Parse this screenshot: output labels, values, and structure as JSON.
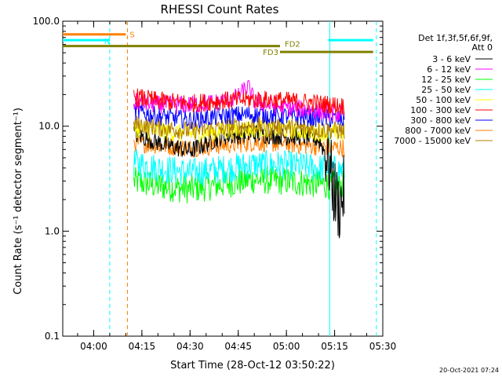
{
  "chart_data": {
    "type": "line",
    "title": "RHESSI Count Rates",
    "xlabel": "Start Time (28-Oct-12 03:50:22)",
    "ylabel": "Count Rate (s⁻¹ detector segment⁻¹)",
    "y_scale": "log",
    "ylim": [
      0.1,
      100.0
    ],
    "xlim": [
      "03:50:22",
      "05:30:00"
    ],
    "x_ticks": [
      "04:00",
      "04:15",
      "04:30",
      "04:45",
      "05:00",
      "05:15",
      "05:30"
    ],
    "y_ticks": [
      "0.1",
      "1.0",
      "10.0",
      "100.0"
    ],
    "grid": false,
    "legend_position": "right",
    "legend_header": [
      "Det 1f,3f,5f,6f,9f,",
      "Att 0"
    ],
    "timestamp": "20-Oct-2021 07:24",
    "data_start": "04:12:30",
    "data_end": "05:18:00",
    "series": [
      {
        "name": "3 - 6 keV",
        "color": "#000000",
        "x": [
          "04:12:30",
          "04:20:00",
          "04:30:00",
          "04:40:00",
          "04:50:00",
          "05:00:00",
          "05:05:00",
          "05:10:00",
          "05:13:00",
          "05:15:00",
          "05:16:30",
          "05:18:00"
        ],
        "values": [
          8.5,
          7.0,
          5.8,
          8.0,
          8.5,
          8.0,
          8.0,
          7.5,
          5.0,
          2.2,
          1.7,
          2.5
        ]
      },
      {
        "name": "6 - 12 keV",
        "color": "#ff00ff",
        "x": [
          "04:12:30",
          "04:20:00",
          "04:30:00",
          "04:40:00",
          "04:45:00",
          "04:48:00",
          "04:50:00",
          "04:55:00",
          "05:00:00",
          "05:10:00",
          "05:18:00"
        ],
        "values": [
          17,
          16,
          16,
          17,
          19,
          24,
          17,
          16,
          15,
          14,
          13
        ]
      },
      {
        "name": "12 - 25 keV",
        "color": "#00ff00",
        "x": [
          "04:12:30",
          "04:20:00",
          "04:30:00",
          "04:40:00",
          "04:50:00",
          "05:00:00",
          "05:10:00",
          "05:18:00"
        ],
        "values": [
          3.0,
          2.7,
          2.5,
          2.8,
          3.1,
          3.0,
          2.8,
          2.7
        ]
      },
      {
        "name": "25 - 50 keV",
        "color": "#00ffff",
        "x": [
          "04:12:30",
          "04:20:00",
          "04:30:00",
          "04:40:00",
          "04:50:00",
          "05:00:00",
          "05:10:00",
          "05:18:00"
        ],
        "values": [
          4.5,
          4.0,
          3.6,
          3.9,
          4.3,
          4.3,
          4.0,
          3.8
        ]
      },
      {
        "name": "50 - 100 keV",
        "color": "#ffff00",
        "x": [
          "04:12:30",
          "04:20:00",
          "04:30:00",
          "04:40:00",
          "04:50:00",
          "05:00:00",
          "05:10:00",
          "05:18:00"
        ],
        "values": [
          9.5,
          9.0,
          8.5,
          9.0,
          9.5,
          9.3,
          8.8,
          8.5
        ]
      },
      {
        "name": "100 - 300 keV",
        "color": "#ff0000",
        "x": [
          "04:12:30",
          "04:20:00",
          "04:30:00",
          "04:40:00",
          "04:50:00",
          "05:00:00",
          "05:10:00",
          "05:18:00"
        ],
        "values": [
          19,
          17.5,
          16.5,
          17.5,
          18,
          17.5,
          16.5,
          15.5
        ]
      },
      {
        "name": "300 - 800 keV",
        "color": "#0000ff",
        "x": [
          "04:12:30",
          "04:20:00",
          "04:30:00",
          "04:40:00",
          "04:50:00",
          "05:00:00",
          "05:10:00",
          "05:18:00"
        ],
        "values": [
          14,
          12.5,
          11.5,
          12.5,
          13,
          12.5,
          12,
          11.5
        ]
      },
      {
        "name": "800 - 7000 keV",
        "color": "#ff8000",
        "x": [
          "04:12:30",
          "04:20:00",
          "04:30:00",
          "04:40:00",
          "04:50:00",
          "05:00:00",
          "05:10:00",
          "05:18:00"
        ],
        "values": [
          7.0,
          6.6,
          6.2,
          6.6,
          7.0,
          6.8,
          6.4,
          6.2
        ]
      },
      {
        "name": "7000 - 15000 keV",
        "color": "#b08000",
        "x": [
          "04:12:30",
          "04:20:00",
          "04:30:00",
          "04:40:00",
          "04:50:00",
          "05:00:00",
          "05:10:00",
          "05:18:00"
        ],
        "values": [
          10.5,
          9.8,
          9.0,
          9.6,
          10.2,
          9.8,
          9.3,
          9.0
        ]
      }
    ],
    "flag_bars": [
      {
        "label": "S",
        "color": "#ff8000",
        "x_start": "03:50:22",
        "x_end": "04:10:00",
        "y": 75
      },
      {
        "label": "N",
        "color": "#00ffff",
        "x_start": "03:50:22",
        "x_end": "04:05:00",
        "y": 66
      },
      {
        "label": "N",
        "color": "#00ffff",
        "x_start": "05:13:00",
        "x_end": "05:27:00",
        "y": 66
      },
      {
        "label": "FD2",
        "color": "#808000",
        "x_start": "03:50:22",
        "x_end": "04:58:00",
        "y": 58
      },
      {
        "label": "FD3",
        "color": "#808000",
        "x_start": "04:58:00",
        "x_end": "05:27:00",
        "y": 51
      }
    ],
    "vertical_markers": [
      {
        "color": "#00ffff",
        "style": "dashed",
        "x": "04:05:00"
      },
      {
        "color": "#ff8000",
        "style": "dashed",
        "x": "04:10:30"
      },
      {
        "color": "#00ffff",
        "style": "solid",
        "x": "05:13:30"
      },
      {
        "color": "#00ffff",
        "style": "dashed",
        "x": "05:28:00"
      }
    ]
  }
}
